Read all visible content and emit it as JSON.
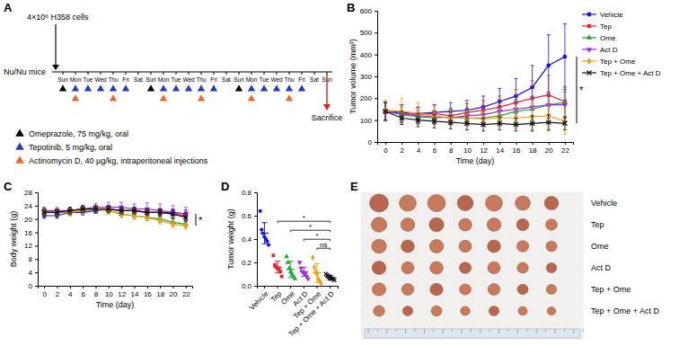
{
  "chart_data": [
    {
      "title": "B",
      "type": "line",
      "x_label": "Time (day)",
      "y_label": "Tumor volume (mm³)",
      "x": [
        0,
        2,
        4,
        6,
        8,
        10,
        12,
        14,
        16,
        18,
        20,
        22
      ],
      "xlim": [
        -1,
        23
      ],
      "xticks": [
        0,
        2,
        4,
        6,
        8,
        10,
        12,
        14,
        16,
        18,
        20,
        22
      ],
      "ylim": [
        0,
        600
      ],
      "yticks": [
        0,
        100,
        200,
        300,
        400,
        500,
        600
      ],
      "legend": "right",
      "series": [
        {
          "name": "Vehicle",
          "color": "#1515e6",
          "marker": "circle",
          "values": [
            140,
            135,
            130,
            135,
            140,
            145,
            160,
            185,
            210,
            250,
            350,
            390
          ],
          "errors": [
            40,
            35,
            30,
            35,
            40,
            45,
            50,
            60,
            80,
            100,
            140,
            150
          ]
        },
        {
          "name": "Tep",
          "color": "#e3262e",
          "marker": "square",
          "values": [
            140,
            130,
            125,
            130,
            120,
            135,
            145,
            160,
            180,
            200,
            215,
            185
          ],
          "errors": [
            40,
            40,
            35,
            40,
            35,
            40,
            45,
            50,
            60,
            80,
            90,
            70
          ]
        },
        {
          "name": "Ome",
          "color": "#22a539",
          "marker": "triangle",
          "values": [
            140,
            125,
            115,
            110,
            115,
            110,
            110,
            120,
            140,
            150,
            170,
            180
          ],
          "errors": [
            40,
            35,
            30,
            30,
            35,
            30,
            30,
            35,
            45,
            50,
            60,
            70
          ]
        },
        {
          "name": "Act D",
          "color": "#9b30d9",
          "marker": "triangle-down",
          "values": [
            140,
            130,
            120,
            115,
            110,
            120,
            125,
            140,
            150,
            160,
            170,
            170
          ],
          "errors": [
            45,
            40,
            35,
            30,
            30,
            35,
            35,
            40,
            45,
            50,
            60,
            60
          ]
        },
        {
          "name": "Tep + Ome",
          "color": "#f39c12",
          "marker": "diamond",
          "values": [
            145,
            140,
            130,
            120,
            110,
            110,
            105,
            110,
            110,
            115,
            120,
            95
          ],
          "errors": [
            45,
            60,
            50,
            40,
            35,
            35,
            35,
            40,
            50,
            60,
            70,
            60
          ]
        },
        {
          "name": "Tep + Ome + Act D",
          "color": "#111111",
          "marker": "x",
          "values": [
            140,
            110,
            100,
            95,
            90,
            85,
            80,
            85,
            80,
            85,
            90,
            85
          ],
          "errors": [
            40,
            30,
            30,
            30,
            30,
            30,
            30,
            30,
            30,
            35,
            35,
            30
          ]
        }
      ],
      "significance": {
        "label": "*",
        "between": [
          0,
          5
        ]
      }
    },
    {
      "title": "C",
      "type": "line",
      "x_label": "Time (day)",
      "y_label": "Body weight (g)",
      "x": [
        0,
        2,
        4,
        6,
        8,
        10,
        12,
        14,
        16,
        18,
        20,
        22
      ],
      "xlim": [
        -1,
        23
      ],
      "xticks": [
        0,
        2,
        4,
        6,
        8,
        10,
        12,
        14,
        16,
        18,
        20,
        22
      ],
      "ylim": [
        0,
        28
      ],
      "yticks": [
        0,
        4,
        8,
        12,
        16,
        20,
        24,
        28
      ],
      "series": [
        {
          "color": "#1515e6",
          "marker": "circle",
          "values": [
            21,
            21,
            22,
            22,
            22.5,
            23,
            22.5,
            22.5,
            22,
            22,
            22,
            21.5
          ],
          "errors": [
            0.8,
            0.8,
            0.8,
            0.8,
            0.8,
            0.8,
            0.8,
            0.8,
            1,
            1,
            1,
            1.2
          ]
        },
        {
          "color": "#e3262e",
          "marker": "square",
          "values": [
            22,
            22,
            22.5,
            23,
            23,
            23,
            22.5,
            22.5,
            22,
            22,
            21.5,
            21
          ],
          "errors": [
            1,
            1,
            1,
            1,
            1,
            1,
            1,
            1,
            1,
            1.2,
            1.2,
            1.2
          ]
        },
        {
          "color": "#22a539",
          "marker": "triangle",
          "values": [
            22.5,
            22,
            22,
            22.5,
            23,
            22.5,
            21.5,
            21,
            20.5,
            20,
            19,
            18.5
          ],
          "errors": [
            1,
            1,
            1,
            1,
            1,
            1,
            1,
            1,
            1,
            1,
            1,
            1
          ]
        },
        {
          "color": "#9b30d9",
          "marker": "triangle-down",
          "values": [
            22.5,
            22.5,
            22.5,
            23,
            23.5,
            23.5,
            23.5,
            23,
            23,
            22.5,
            22,
            21.5
          ],
          "errors": [
            1,
            1,
            1,
            1,
            1.2,
            1.5,
            1.5,
            1.5,
            1.8,
            2,
            2,
            2
          ]
        },
        {
          "color": "#f39c12",
          "marker": "diamond",
          "values": [
            22,
            22,
            22,
            22.5,
            23,
            22.5,
            21.5,
            21,
            20.5,
            19.5,
            18.5,
            18
          ],
          "errors": [
            1,
            1,
            1,
            1,
            1,
            1,
            1,
            1,
            1,
            1,
            1,
            1
          ]
        },
        {
          "color": "#111111",
          "marker": "x",
          "values": [
            22,
            22,
            22.5,
            23,
            23,
            23,
            22.5,
            22.5,
            22,
            22,
            21.5,
            20.5
          ],
          "errors": [
            1,
            1,
            1,
            1,
            1,
            1,
            1,
            1,
            1,
            1,
            1.2,
            1.2
          ]
        }
      ],
      "significance": {
        "label": "*",
        "between": [
          0,
          4
        ]
      }
    },
    {
      "title": "D",
      "type": "scatter",
      "y_label": "Tumor weight (g)",
      "categories": [
        "Vehicle",
        "Tep",
        "Ome",
        "Act D",
        "Tep + Ome",
        "Tep + Ome + Act D"
      ],
      "colors": [
        "#1515e6",
        "#e3262e",
        "#22a539",
        "#9b30d9",
        "#f39c12",
        "#111111"
      ],
      "markers": [
        "circle",
        "square",
        "triangle",
        "triangle-down",
        "diamond",
        "x"
      ],
      "ylim": [
        0,
        0.8
      ],
      "yticks": [
        {
          "value": 0,
          "label": "0.0"
        },
        0.2,
        0.4,
        0.6,
        0.8
      ],
      "points": [
        [
          0.64,
          0.48,
          0.45,
          0.42,
          0.4,
          0.38,
          0.35
        ],
        [
          0.26,
          0.18,
          0.16,
          0.15,
          0.14,
          0.12,
          0.08
        ],
        [
          0.25,
          0.2,
          0.15,
          0.12,
          0.1,
          0.08,
          0.06
        ],
        [
          0.2,
          0.15,
          0.12,
          0.11,
          0.1,
          0.08,
          0.06
        ],
        [
          0.24,
          0.16,
          0.12,
          0.1,
          0.06,
          0.04,
          0.02
        ],
        [
          0.1,
          0.09,
          0.08,
          0.07,
          0.06,
          0.06,
          0.05
        ]
      ],
      "means": [
        0.45,
        0.16,
        0.14,
        0.12,
        0.11,
        0.07
      ],
      "sd": [
        0.09,
        0.05,
        0.07,
        0.04,
        0.08,
        0.02
      ],
      "comparisons": [
        {
          "pair": [
            1,
            5
          ],
          "label": "*"
        },
        {
          "pair": [
            2,
            5
          ],
          "label": "*"
        },
        {
          "pair": [
            3,
            5
          ],
          "label": "*"
        },
        {
          "pair": [
            4,
            5
          ],
          "label": "ns"
        }
      ]
    }
  ],
  "timeline": {
    "title": "A",
    "cells": "4×10⁶ H358 cells",
    "mice": "Nu/Nu mice",
    "days": [
      "Sun",
      "Mon",
      "Tue",
      "Wed",
      "Thu",
      "Fri",
      "Sat",
      "Sun",
      "Mon",
      "Tue",
      "Wed",
      "Thu",
      "Fri",
      "Sat",
      "Sun",
      "Mon",
      "Tue",
      "Wed",
      "Thu",
      "Fri",
      "Sat",
      "Sun"
    ],
    "end_label": "Sacrifice",
    "end_day": 21,
    "treatments": [
      {
        "label": "Omeprazole, 75 mg/kg, oral",
        "color": "#000000",
        "days": [
          0,
          7,
          14
        ]
      },
      {
        "label": "Tepotinib, 5 mg/kg, oral",
        "color": "#1f3fbf",
        "days": [
          1,
          2,
          3,
          4,
          5,
          8,
          9,
          10,
          11,
          12,
          15,
          16,
          17,
          18,
          19
        ]
      },
      {
        "label": "Actinomycin D, 40 µg/kg, intraperitoneal injections",
        "color": "#f26522",
        "days": [
          1,
          4,
          8,
          11,
          15,
          18
        ]
      }
    ]
  },
  "photo": {
    "title": "E",
    "rows": [
      "Vehicle",
      "Tep",
      "Ome",
      "Act D",
      "Tep + Ome",
      "Tep + Ome + Act D"
    ]
  }
}
